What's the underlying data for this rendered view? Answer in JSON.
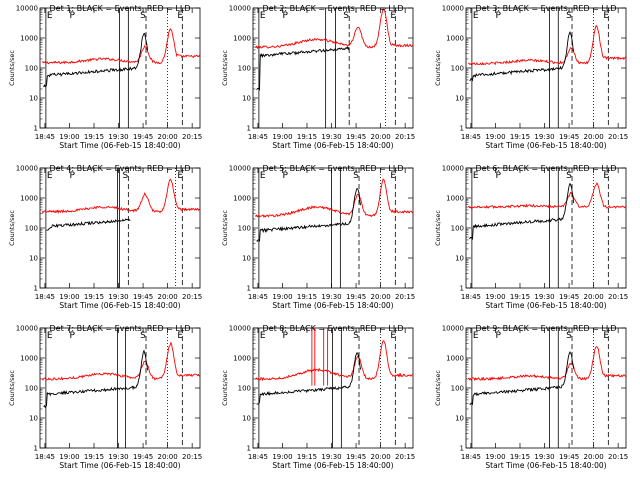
{
  "figure": {
    "panels": [
      {
        "title": "Det 1: BLACK = Events, RED = LLD",
        "xlabel": "Start Time (06-Feb-15 18:40:00)",
        "ylabel": "Counts/sec"
      },
      {
        "title": "Det 2: BLACK = Events, RED = LLD",
        "xlabel": "Start Time (06-Feb-15 18:40:00)",
        "ylabel": "Counts/sec"
      },
      {
        "title": "Det 3: BLACK = Events, RED = LLD",
        "xlabel": "Start Time (06-Feb-15 18:40:00)",
        "ylabel": "Counts/sec"
      },
      {
        "title": "Det 4: BLACK = Events, RED = LLD",
        "xlabel": "Start Time (06-Feb-15 18:40:00)",
        "ylabel": "Counts/sec"
      },
      {
        "title": "Det 5: BLACK = Events, RED = LLD",
        "xlabel": "Start Time (06-Feb-15 18:40:00)",
        "ylabel": "Counts/sec"
      },
      {
        "title": "Det 6: BLACK = Events, RED = LLD",
        "xlabel": "Start Time (06-Feb-15 18:40:00)",
        "ylabel": "Counts/sec"
      },
      {
        "title": "Det 7: BLACK = Events, RED = LLD",
        "xlabel": "Start Time (06-Feb-15 18:40:00)",
        "ylabel": "Counts/sec"
      },
      {
        "title": "Det 8: BLACK = Events, RED = LLD",
        "xlabel": "Start Time (06-Feb-15 18:40:00)",
        "ylabel": "Counts/sec"
      },
      {
        "title": "Det 9: BLACK = Events, RED = LLD",
        "xlabel": "Start Time (06-Feb-15 18:40:00)",
        "ylabel": "Counts/sec"
      }
    ]
  },
  "chart_data": {
    "type": "line",
    "yscale": "log",
    "ylim": [
      1,
      10000
    ],
    "y_tick_labels": [
      "1",
      "10",
      "100",
      "1000",
      "10000"
    ],
    "x_tick_labels": [
      "18:45",
      "19:00",
      "19:15",
      "19:30",
      "19:45",
      "20:00",
      "20:15"
    ],
    "xlim_hours": [
      18.7,
      20.33
    ],
    "x_ticks_hours": [
      18.75,
      19.0,
      19.25,
      19.5,
      19.75,
      20.0,
      20.25
    ],
    "flag_letters": [
      "E",
      "P",
      "S",
      "E"
    ],
    "series_colors": {
      "events": "#000000",
      "lld": "#ff0000"
    },
    "series": [
      {
        "events_start": 18.73,
        "events_start_value": 25,
        "events_base": 55,
        "events_end": 19.8,
        "lld_base": 150,
        "lld_bump": 200,
        "lld_peak": 2000,
        "lld_tail": 300,
        "solid_lines": [
          19.51,
          19.6
        ],
        "dashed_lines": [
          19.78,
          20.15
        ],
        "dotted_lines": [
          20.0
        ]
      },
      {
        "events_start": 18.73,
        "events_start_value": 20,
        "events_base": 250,
        "events_end": 19.68,
        "lld_base": 500,
        "lld_bump": 900,
        "lld_peak": 9000,
        "lld_tail": 600,
        "solid_lines": [
          19.44,
          19.54
        ],
        "dashed_lines": [
          19.68,
          20.15
        ],
        "dotted_lines": [
          20.05
        ]
      },
      {
        "events_start": 18.73,
        "events_start_value": 40,
        "events_base": 55,
        "events_end": 19.8,
        "lld_base": 140,
        "lld_bump": 180,
        "lld_peak": 2500,
        "lld_tail": 250,
        "solid_lines": [
          19.55,
          19.64
        ],
        "dashed_lines": [
          19.78,
          20.15
        ],
        "dotted_lines": [
          20.0
        ]
      },
      {
        "events_start": 18.76,
        "events_start_value": 90,
        "events_base": 110,
        "events_end": 19.62,
        "lld_base": 350,
        "lld_bump": 500,
        "lld_peak": 4000,
        "lld_tail": 450,
        "solid_lines": [
          19.49,
          19.51
        ],
        "dashed_lines": [
          19.6,
          20.15
        ],
        "dotted_lines": [
          20.08
        ]
      },
      {
        "events_start": 18.73,
        "events_start_value": 40,
        "events_base": 80,
        "events_end": 19.8,
        "lld_base": 250,
        "lld_bump": 500,
        "lld_peak": 4000,
        "lld_tail": 400,
        "solid_lines": [
          19.5,
          19.59
        ],
        "dashed_lines": [
          19.78,
          20.15
        ],
        "dotted_lines": [
          20.0
        ]
      },
      {
        "events_start": 18.73,
        "events_start_value": 45,
        "events_base": 110,
        "events_end": 19.8,
        "lld_base": 500,
        "lld_bump": 550,
        "lld_peak": 3000,
        "lld_tail": 500,
        "solid_lines": [
          19.55,
          19.64
        ],
        "dashed_lines": [
          19.78,
          20.15
        ],
        "dotted_lines": [
          20.0
        ]
      },
      {
        "events_start": 18.73,
        "events_start_value": 25,
        "events_base": 60,
        "events_end": 19.8,
        "lld_base": 200,
        "lld_bump": 300,
        "lld_peak": 3000,
        "lld_tail": 300,
        "solid_lines": [
          19.49,
          19.57
        ],
        "dashed_lines": [
          19.78,
          20.15
        ],
        "dotted_lines": [
          20.0
        ]
      },
      {
        "events_start": 18.73,
        "events_start_value": 30,
        "events_base": 60,
        "events_end": 19.8,
        "lld_base": 200,
        "lld_bump": 400,
        "lld_peak": 4000,
        "lld_tail": 300,
        "solid_lines": [
          19.51,
          19.6
        ],
        "dashed_lines": [
          19.78,
          20.15
        ],
        "dotted_lines": [
          20.0
        ],
        "red_spikes": [
          19.3,
          19.33,
          19.42,
          19.46
        ]
      },
      {
        "events_start": 18.73,
        "events_start_value": 30,
        "events_base": 60,
        "events_end": 19.8,
        "lld_base": 200,
        "lld_bump": 250,
        "lld_peak": 2500,
        "lld_tail": 280,
        "solid_lines": [
          19.55,
          19.64
        ],
        "dashed_lines": [
          19.78,
          20.15
        ],
        "dotted_lines": [
          20.0
        ]
      }
    ]
  }
}
